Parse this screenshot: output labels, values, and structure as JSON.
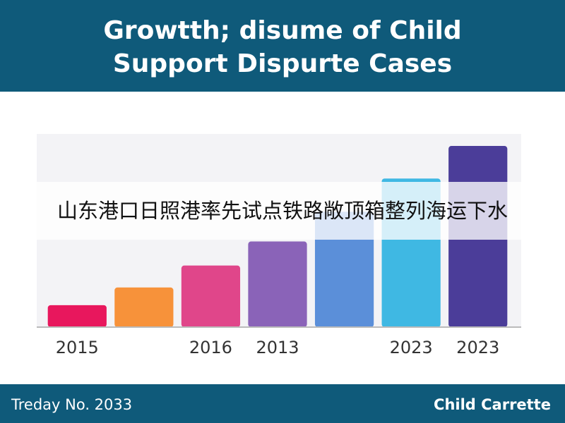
{
  "header": {
    "title_lines": [
      "Growtth; disume of Child",
      "Support Dispurte Cases"
    ]
  },
  "chart_data": {
    "type": "bar",
    "categories": [
      "2015",
      null,
      "2016",
      "2013",
      null,
      "2023",
      "2023"
    ],
    "values": [
      31,
      56,
      87,
      121,
      163,
      210,
      256
    ],
    "colors": [
      "#e8175d",
      "#f7923a",
      "#e0468a",
      "#8a63b8",
      "#5b8fd9",
      "#3fb8e3",
      "#4b3d99"
    ],
    "ylim": [
      0,
      273
    ]
  },
  "banner": {
    "text": "山东港口日照港率先试点铁路敞顶箱整列海运下水"
  },
  "footer": {
    "left": "Treday No. 2033",
    "right": "Child Carrette"
  }
}
